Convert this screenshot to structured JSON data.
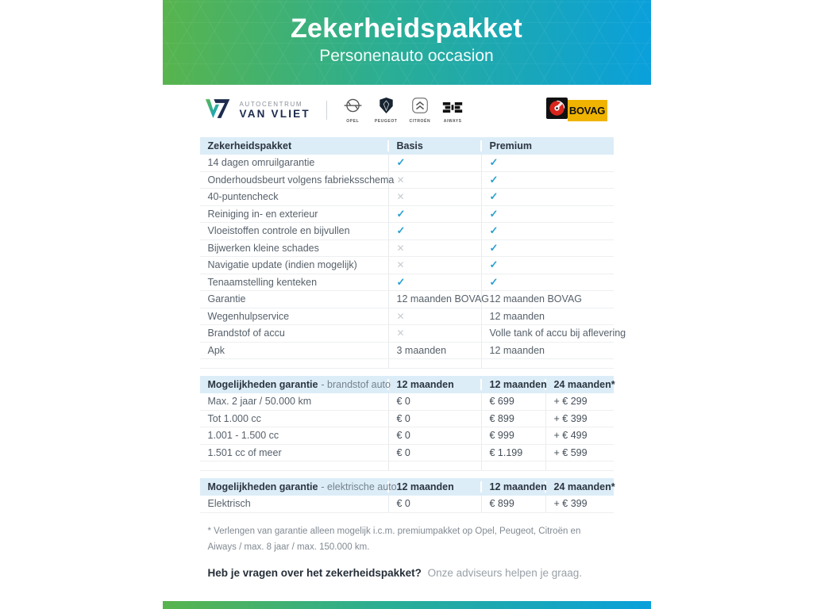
{
  "banner": {
    "title": "Zekerheidspakket",
    "subtitle": "Personenauto occasion"
  },
  "dealer": {
    "name_top": "AUTOCENTRUM",
    "name_bottom": "VAN VLIET"
  },
  "brands": [
    {
      "name": "OPEL"
    },
    {
      "name": "PEUGEOT"
    },
    {
      "name": "CITROËN"
    },
    {
      "name": "AIWAYS"
    }
  ],
  "bovag": {
    "label": "BOVAG"
  },
  "package_table": {
    "columns": [
      "Zekerheidspakket",
      "Basis",
      "Premium"
    ],
    "rows": [
      {
        "label": "14 dagen omruilgarantie",
        "basis": "check",
        "premium": "check"
      },
      {
        "label": "Onderhoudsbeurt volgens fabrieksschema",
        "basis": "cross",
        "premium": "check"
      },
      {
        "label": "40-puntencheck",
        "basis": "cross",
        "premium": "check"
      },
      {
        "label": "Reiniging in- en exterieur",
        "basis": "check",
        "premium": "check"
      },
      {
        "label": "Vloeistoffen controle en bijvullen",
        "basis": "check",
        "premium": "check"
      },
      {
        "label": "Bijwerken kleine schades",
        "basis": "cross",
        "premium": "check"
      },
      {
        "label": "Navigatie update (indien mogelijk)",
        "basis": "cross",
        "premium": "check"
      },
      {
        "label": "Tenaamstelling kenteken",
        "basis": "check",
        "premium": "check"
      },
      {
        "label": "Garantie",
        "basis": "12 maanden BOVAG",
        "premium": "12 maanden BOVAG"
      },
      {
        "label": "Wegenhulpservice",
        "basis": "cross",
        "premium": "12 maanden"
      },
      {
        "label": "Brandstof of accu",
        "basis": "cross",
        "premium": "Volle tank of accu bij aflevering"
      },
      {
        "label": "Apk",
        "basis": "3 maanden",
        "premium": "12 maanden"
      }
    ]
  },
  "fuel_table": {
    "title_bold": "Mogelijkheden garantie",
    "title_rest": "- brandstof auto",
    "columns": [
      "12 maanden",
      "12 maanden",
      "24 maanden*"
    ],
    "rows": [
      {
        "label": "Max. 2 jaar / 50.000 km",
        "values": [
          "€ 0",
          "€ 699",
          "+ € 299"
        ]
      },
      {
        "label": "Tot 1.000 cc",
        "values": [
          "€ 0",
          "€ 899",
          "+ € 399"
        ]
      },
      {
        "label": "1.001 - 1.500 cc",
        "values": [
          "€ 0",
          "€ 999",
          "+ € 499"
        ]
      },
      {
        "label": "1.501 cc of meer",
        "values": [
          "€ 0",
          "€ 1.199",
          "+ € 599"
        ]
      }
    ]
  },
  "electric_table": {
    "title_bold": "Mogelijkheden garantie",
    "title_rest": "- elektrische auto",
    "columns": [
      "12 maanden",
      "12 maanden",
      "24 maanden*"
    ],
    "rows": [
      {
        "label": "Elektrisch",
        "values": [
          "€ 0",
          "€ 899",
          "+ € 399"
        ]
      }
    ]
  },
  "footnote": "* Verlengen van garantie alleen mogelijk i.c.m. premiumpakket op Opel, Peugeot, Citroën en Aiways / max. 8 jaar / max. 150.000 km.",
  "question": {
    "bold": "Heb je vragen over het zekerheidspakket?",
    "rest": "Onze adviseurs helpen je graag."
  },
  "colors": {
    "accent_green": "#58b44d",
    "accent_blue": "#0aa0db",
    "check": "#29a0d2",
    "cross": "#c7ccd1",
    "table_header_bg": "#dcedf8",
    "bovag_yellow": "#f0b400",
    "bovag_red": "#d9251c"
  }
}
